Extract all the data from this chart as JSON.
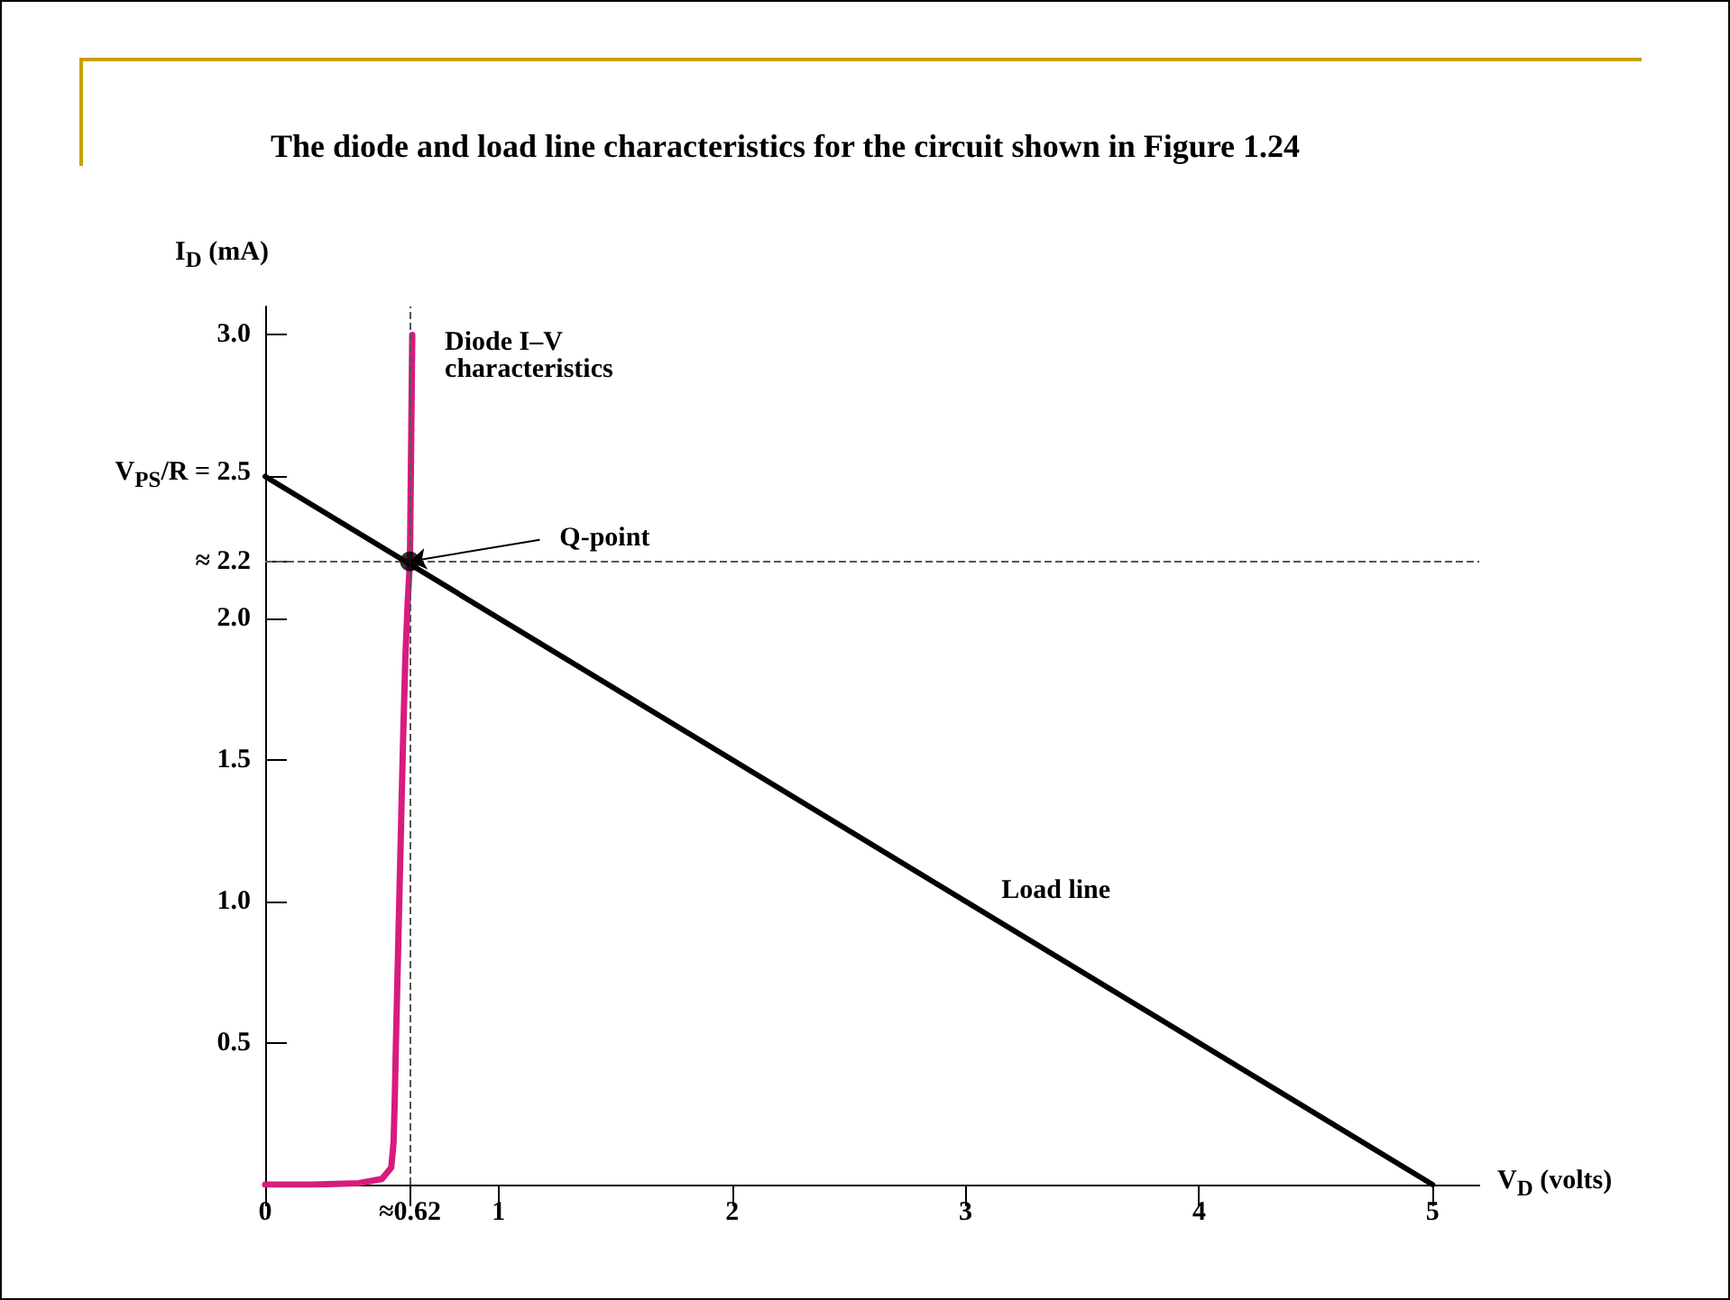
{
  "chart_data": {
    "type": "line",
    "title": "The diode and load line characteristics for the circuit shown in Figure 1.24",
    "xlabel": "V$_{D}$ (volts)",
    "ylabel": "I$_{D}$ (mA)",
    "xlim": [
      0,
      5.2
    ],
    "ylim": [
      0,
      3.1
    ],
    "xticks": [
      0,
      {
        "value": 0.62,
        "label": "≈0.62"
      },
      1,
      2,
      3,
      4,
      5
    ],
    "yticks": [
      0.5,
      "1.0",
      1.5,
      "2.0",
      {
        "value": 2.2,
        "label": "≈ 2.2"
      },
      {
        "value": 2.5,
        "label": "V$_{PS}$/R = 2.5"
      },
      "3.0"
    ],
    "grid": false,
    "legend": false,
    "marker": "none",
    "line_style": "solid",
    "series": [
      {
        "name": "Diode I–V characteristics",
        "color": "#d81b7f",
        "x": [
          0,
          0.2,
          0.4,
          0.5,
          0.54,
          0.55,
          0.555,
          0.56,
          0.57,
          0.58,
          0.59,
          0.6,
          0.61,
          0.62,
          0.63
        ],
        "values": [
          0,
          0,
          0.005,
          0.02,
          0.06,
          0.15,
          0.3,
          0.5,
          0.85,
          1.2,
          1.55,
          1.85,
          2.05,
          2.2,
          3.0
        ]
      },
      {
        "name": "Load line",
        "color": "#000000",
        "x": [
          0,
          5
        ],
        "values": [
          2.5,
          0
        ]
      },
      {
        "type": "scatter",
        "color": "#000000",
        "marker": "circle",
        "x": [
          0.62
        ],
        "values": [
          2.2
        ]
      }
    ],
    "ref_lines": [
      {
        "axis": "x",
        "value": 0.62,
        "label": null,
        "line_style": "dashed",
        "color": "#555555"
      },
      {
        "axis": "y",
        "value": 2.2,
        "label": null,
        "line_style": "dashed",
        "color": "#555555"
      }
    ],
    "annotations": [
      {
        "text": "Q-point",
        "x": 0.62,
        "y": 2.2
      }
    ]
  }
}
